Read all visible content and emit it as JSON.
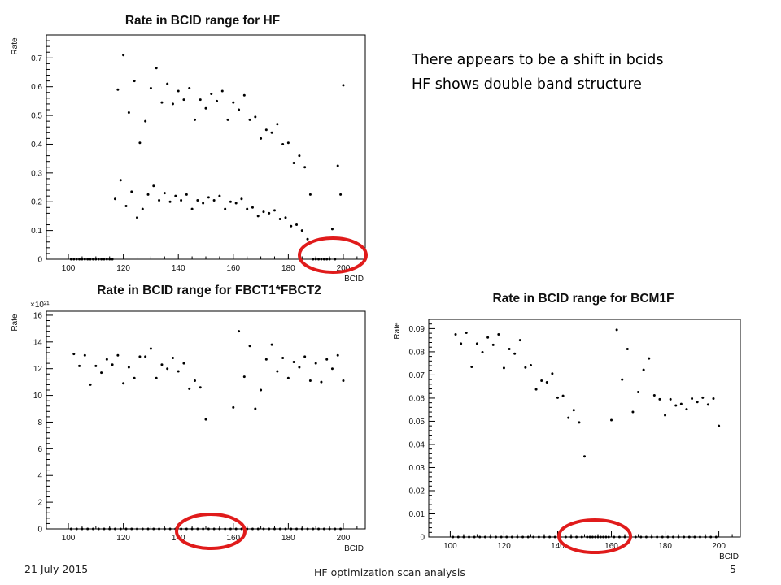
{
  "notes": {
    "line1": "There appears to be a shift in bcids",
    "line2": "HF shows  double band structure"
  },
  "footer": {
    "date": "21 July 2015",
    "center": "HF optimization scan analysis",
    "page": "5"
  },
  "colors": {
    "marker": "#000000",
    "highlight": "#e01b1b",
    "frame": "#000000"
  },
  "chart_data": [
    {
      "id": "hf",
      "type": "scatter",
      "title": "Rate in BCID range for HF",
      "xlabel": "BCID",
      "ylabel": "Rate",
      "xlim": [
        92,
        208
      ],
      "ylim": [
        0,
        0.78
      ],
      "x_ticks": [
        100,
        120,
        140,
        160,
        180,
        200
      ],
      "y_ticks": [
        0,
        0.1,
        0.2,
        0.3,
        0.4,
        0.5,
        0.6,
        0.7
      ],
      "y_tick_labels": [
        "0",
        "0.1",
        "0.2",
        "0.3",
        "0.4",
        "0.5",
        "0.6",
        "0.7"
      ],
      "exponent_label": "",
      "series": [
        {
          "x": [
            101,
            102,
            103,
            104,
            105,
            106,
            107,
            108,
            109,
            110,
            111,
            112,
            113,
            114,
            115,
            116
          ],
          "y": [
            0,
            0,
            0,
            0,
            0,
            0,
            0,
            0,
            0,
            0,
            0,
            0,
            0,
            0,
            0,
            0
          ]
        },
        {
          "x": [
            118,
            120,
            122,
            124,
            126,
            128,
            130,
            132,
            134,
            136,
            138,
            140,
            142,
            144,
            146,
            148,
            150,
            152,
            154,
            156,
            158,
            160,
            162,
            164,
            166,
            168,
            170,
            172,
            174,
            176,
            178,
            180,
            182,
            184,
            186,
            188,
            190,
            192,
            194,
            196,
            198,
            200
          ],
          "y": [
            0.59,
            0.71,
            0.51,
            0.62,
            0.405,
            0.48,
            0.595,
            0.665,
            0.545,
            0.61,
            0.54,
            0.585,
            0.555,
            0.595,
            0.485,
            0.555,
            0.525,
            0.575,
            0.55,
            0.585,
            0.485,
            0.545,
            0.52,
            0.57,
            0.485,
            0.495,
            0.42,
            0.45,
            0.44,
            0.47,
            0.4,
            0.405,
            0.335,
            0.36,
            0.32,
            0.225,
            0.0,
            0.0,
            0.0,
            0.105,
            0.325,
            0.605
          ]
        },
        {
          "x": [
            117,
            119,
            121,
            123,
            125,
            127,
            129,
            131,
            133,
            135,
            137,
            139,
            141,
            143,
            145,
            147,
            149,
            151,
            153,
            155,
            157,
            159,
            161,
            163,
            165,
            167,
            169,
            171,
            173,
            175,
            177,
            179,
            181,
            183,
            185,
            187,
            189,
            191,
            193,
            195,
            197,
            199
          ],
          "y": [
            0.21,
            0.275,
            0.185,
            0.235,
            0.145,
            0.175,
            0.225,
            0.255,
            0.205,
            0.23,
            0.2,
            0.22,
            0.205,
            0.225,
            0.175,
            0.205,
            0.195,
            0.215,
            0.205,
            0.22,
            0.175,
            0.2,
            0.195,
            0.21,
            0.175,
            0.18,
            0.15,
            0.165,
            0.16,
            0.17,
            0.14,
            0.145,
            0.115,
            0.12,
            0.1,
            0.07,
            0.0,
            0.0,
            0.0,
            0.0,
            0.0,
            0.225
          ]
        }
      ]
    },
    {
      "id": "fbct",
      "type": "scatter",
      "title": "Rate in BCID range for FBCT1*FBCT2",
      "xlabel": "BCID",
      "ylabel": "Rate",
      "xlim": [
        92,
        208
      ],
      "ylim": [
        0,
        16.3
      ],
      "x_ticks": [
        100,
        120,
        140,
        160,
        180,
        200
      ],
      "y_ticks": [
        0,
        2,
        4,
        6,
        8,
        10,
        12,
        14,
        16
      ],
      "y_tick_labels": [
        "0",
        "2",
        "4",
        "6",
        "8",
        "10",
        "12",
        "14",
        "16"
      ],
      "exponent_label": "×10²¹",
      "series": [
        {
          "x": [
            102,
            104,
            106,
            108,
            110,
            112,
            114,
            116,
            118,
            120,
            122,
            124,
            126,
            128,
            130,
            132,
            134,
            136,
            138,
            140,
            142,
            144,
            146,
            148,
            150,
            160,
            162,
            164,
            166,
            168,
            170,
            172,
            174,
            176,
            178,
            180,
            182,
            184,
            186,
            188,
            190,
            192,
            194,
            196,
            198,
            200
          ],
          "y": [
            13.1,
            12.2,
            13.0,
            10.8,
            12.2,
            11.7,
            12.7,
            12.3,
            13.0,
            10.9,
            12.1,
            11.3,
            12.9,
            12.9,
            13.5,
            11.3,
            12.3,
            12.0,
            12.8,
            11.8,
            12.4,
            10.5,
            11.1,
            10.6,
            8.2,
            9.1,
            14.8,
            11.4,
            13.7,
            9.0,
            10.4,
            12.7,
            13.8,
            11.8,
            12.8,
            11.3,
            12.5,
            12.1,
            12.9,
            11.1,
            12.4,
            11.0,
            12.7,
            12.0,
            13.0,
            11.1
          ]
        },
        {
          "x": [
            101,
            103,
            105,
            107,
            109,
            111,
            113,
            115,
            117,
            119,
            121,
            123,
            125,
            127,
            129,
            131,
            133,
            135,
            137,
            139,
            141,
            143,
            145,
            147,
            149,
            151,
            153,
            155,
            157,
            159,
            161,
            163,
            165,
            167,
            169,
            171,
            173,
            175,
            177,
            179,
            181,
            183,
            185,
            187,
            189,
            191,
            193,
            195,
            197,
            199
          ],
          "y": [
            0,
            0,
            0,
            0,
            0,
            0,
            0,
            0,
            0,
            0,
            0,
            0,
            0,
            0,
            0,
            0,
            0,
            0,
            0,
            0,
            0,
            0,
            0,
            0,
            0,
            0,
            0,
            0,
            0,
            0,
            0,
            0,
            0,
            0,
            0,
            0,
            0,
            0,
            0,
            0,
            0,
            0,
            0,
            0,
            0,
            0,
            0,
            0,
            0,
            0
          ]
        }
      ]
    },
    {
      "id": "bcm1f",
      "type": "scatter",
      "title": "Rate in BCID range for BCM1F",
      "xlabel": "BCID",
      "ylabel": "Rate",
      "xlim": [
        92,
        208
      ],
      "ylim": [
        0,
        0.094
      ],
      "x_ticks": [
        100,
        120,
        140,
        160,
        180,
        200
      ],
      "y_ticks": [
        0,
        0.01,
        0.02,
        0.03,
        0.04,
        0.05,
        0.06,
        0.07,
        0.08,
        0.09
      ],
      "y_tick_labels": [
        "0",
        "0.01",
        "0.02",
        "0.03",
        "0.04",
        "0.05",
        "0.06",
        "0.07",
        "0.08",
        "0.09"
      ],
      "exponent_label": "",
      "series": [
        {
          "x": [
            102,
            104,
            106,
            108,
            110,
            112,
            114,
            116,
            118,
            120,
            122,
            124,
            126,
            128,
            130,
            132,
            134,
            136,
            138,
            140,
            142,
            144,
            146,
            148,
            150,
            160,
            162,
            164,
            166,
            168,
            170,
            172,
            174,
            176,
            178,
            180,
            182,
            184,
            186,
            188,
            190,
            192,
            194,
            196,
            198,
            200
          ],
          "y": [
            0.0875,
            0.0835,
            0.0882,
            0.0735,
            0.0835,
            0.0798,
            0.0862,
            0.083,
            0.0875,
            0.073,
            0.0812,
            0.0792,
            0.085,
            0.0732,
            0.0742,
            0.0638,
            0.0675,
            0.0668,
            0.0706,
            0.0602,
            0.061,
            0.0515,
            0.0548,
            0.0495,
            0.0348,
            0.0505,
            0.0895,
            0.068,
            0.0812,
            0.054,
            0.0626,
            0.0722,
            0.0771,
            0.0612,
            0.0595,
            0.0526,
            0.0595,
            0.0568,
            0.0575,
            0.0552,
            0.0598,
            0.0583,
            0.0602,
            0.0572,
            0.0598,
            0.048
          ]
        },
        {
          "x": [
            101,
            103,
            105,
            107,
            109,
            111,
            113,
            115,
            117,
            119,
            121,
            123,
            125,
            127,
            129,
            131,
            133,
            135,
            137,
            139,
            141,
            143,
            145,
            147,
            149,
            151,
            152,
            153,
            154,
            155,
            156,
            157,
            158,
            159,
            161,
            163,
            165,
            167,
            169,
            171,
            173,
            175,
            177,
            179,
            181,
            183,
            185,
            187,
            189,
            191,
            193,
            195,
            197,
            199
          ],
          "y": [
            0,
            0,
            0,
            0,
            0,
            0,
            0,
            0,
            0,
            0,
            0,
            0,
            0,
            0,
            0,
            0,
            0,
            0,
            0,
            0,
            0,
            0,
            0,
            0,
            0,
            0,
            0,
            0,
            0,
            0,
            0,
            0,
            0,
            0,
            0,
            0,
            0,
            0,
            0,
            0,
            0,
            0,
            0,
            0,
            0,
            0,
            0,
            0,
            0,
            0,
            0,
            0,
            0,
            0
          ]
        }
      ]
    }
  ]
}
